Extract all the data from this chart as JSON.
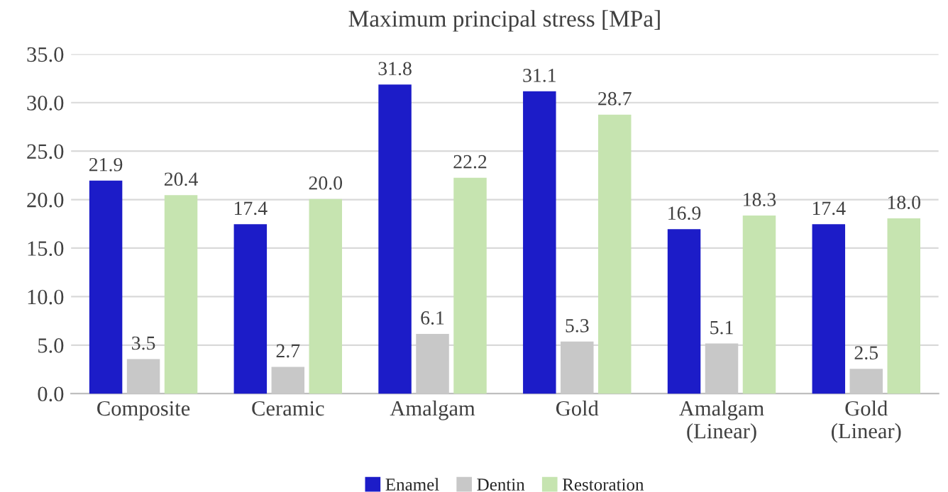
{
  "chart_data": {
    "type": "bar",
    "title": "Maximum principal stress [MPa]",
    "categories": [
      "Composite",
      "Ceramic",
      "Amalgam",
      "Gold",
      "Amalgam\n(Linear)",
      "Gold\n(Linear)"
    ],
    "series": [
      {
        "name": "Enamel",
        "color": "#1c1cc8",
        "values": [
          21.9,
          17.4,
          31.8,
          31.1,
          16.9,
          17.4
        ],
        "value_labels": [
          "21.9",
          "17.4",
          "31.8",
          "31.1",
          "16.9",
          "17.4"
        ]
      },
      {
        "name": "Dentin",
        "color": "#c8c8c8",
        "values": [
          3.5,
          2.7,
          6.1,
          5.3,
          5.1,
          2.5
        ],
        "value_labels": [
          "3.5",
          "2.7",
          "6.1",
          "5.3",
          "5.1",
          "2.5"
        ]
      },
      {
        "name": "Restoration",
        "color": "#c6e4b0",
        "values": [
          20.4,
          20.0,
          22.2,
          28.7,
          18.3,
          18.0
        ],
        "value_labels": [
          "20.4",
          "20.0",
          "22.2",
          "28.7",
          "18.3",
          "18.0"
        ]
      }
    ],
    "ylim": [
      0,
      35
    ],
    "yticks": [
      {
        "value": 0,
        "label": "0.0"
      },
      {
        "value": 5,
        "label": "5.0"
      },
      {
        "value": 10,
        "label": "10.0"
      },
      {
        "value": 15,
        "label": "15.0"
      },
      {
        "value": 20,
        "label": "20.0"
      },
      {
        "value": 25,
        "label": "25.0"
      },
      {
        "value": 30,
        "label": "30.0"
      },
      {
        "value": 35,
        "label": "35.0"
      }
    ],
    "grid": "y",
    "legend": "bottom"
  }
}
